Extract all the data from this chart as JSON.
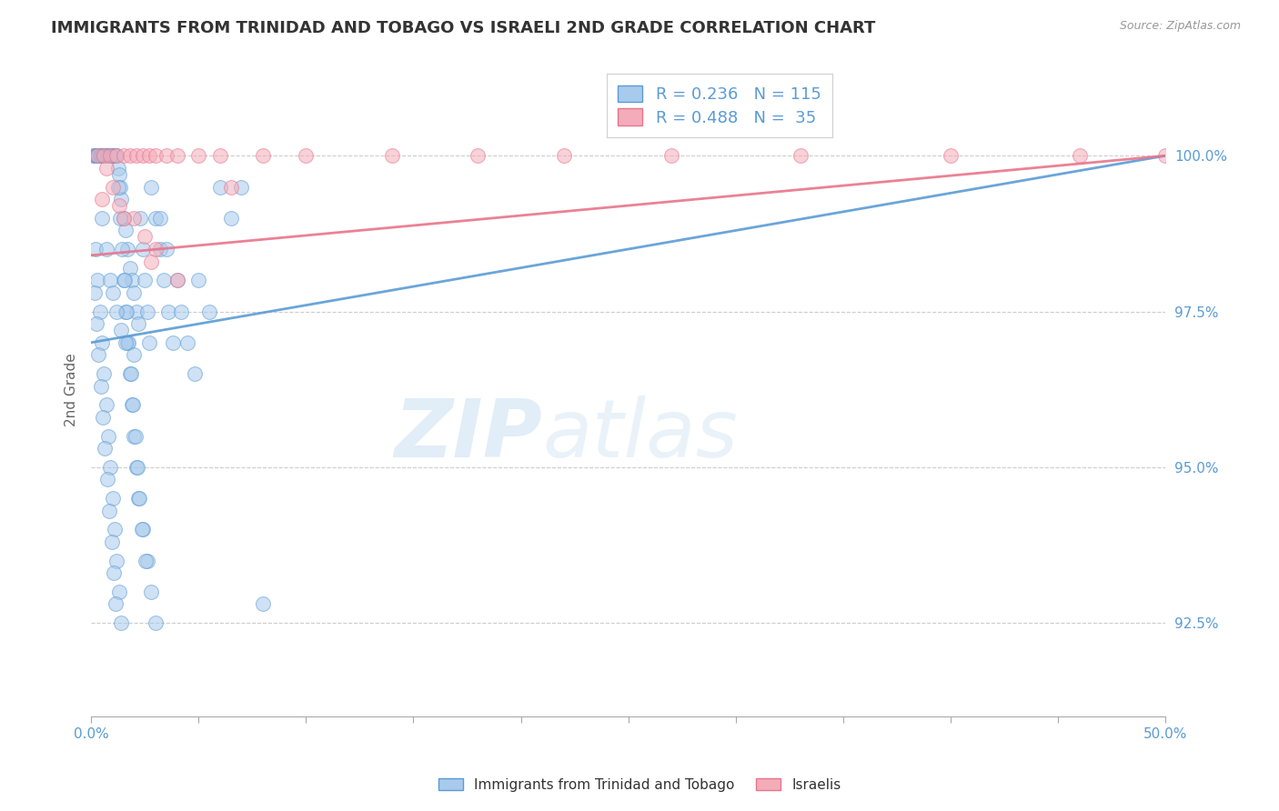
{
  "title": "IMMIGRANTS FROM TRINIDAD AND TOBAGO VS ISRAELI 2ND GRADE CORRELATION CHART",
  "source_text": "Source: ZipAtlas.com",
  "ylabel": "2nd Grade",
  "xlim": [
    0.0,
    50.0
  ],
  "ylim": [
    91.0,
    101.5
  ],
  "yticks": [
    92.5,
    95.0,
    97.5,
    100.0
  ],
  "ytick_labels": [
    "92.5%",
    "95.0%",
    "97.5%",
    "100.0%"
  ],
  "xticks": [
    0.0,
    5.0,
    10.0,
    15.0,
    20.0,
    25.0,
    30.0,
    35.0,
    40.0,
    45.0,
    50.0
  ],
  "xtick_labels": [
    "0.0%",
    "",
    "",
    "",
    "",
    "",
    "",
    "",
    "",
    "",
    "50.0%"
  ],
  "blue_color": "#A8CAEC",
  "pink_color": "#F4ACBA",
  "blue_line_color": "#5B9BD5",
  "pink_line_color": "#E8748A",
  "R_blue": 0.236,
  "N_blue": 115,
  "R_pink": 0.488,
  "N_pink": 35,
  "legend_label_blue": "Immigrants from Trinidad and Tobago",
  "legend_label_pink": "Israelis",
  "watermark_zip": "ZIP",
  "watermark_atlas": "atlas",
  "background_color": "#FFFFFF",
  "blue_scatter_x": [
    0.1,
    0.15,
    0.2,
    0.25,
    0.3,
    0.35,
    0.4,
    0.45,
    0.5,
    0.55,
    0.6,
    0.65,
    0.7,
    0.75,
    0.8,
    0.85,
    0.9,
    0.95,
    1.0,
    1.05,
    1.1,
    1.15,
    1.2,
    1.25,
    1.3,
    1.35,
    1.4,
    1.5,
    1.6,
    1.7,
    1.8,
    1.9,
    2.0,
    2.1,
    2.2,
    2.3,
    2.4,
    2.5,
    2.6,
    2.7,
    2.8,
    3.0,
    3.2,
    3.4,
    3.6,
    3.8,
    4.0,
    4.2,
    4.5,
    4.8,
    5.0,
    5.5,
    6.0,
    6.5,
    7.0,
    0.2,
    0.3,
    0.4,
    0.5,
    0.6,
    0.7,
    0.8,
    0.9,
    1.0,
    1.1,
    1.2,
    1.3,
    1.4,
    1.5,
    1.6,
    1.7,
    1.8,
    1.9,
    2.0,
    2.1,
    2.2,
    2.4,
    2.6,
    2.8,
    3.0,
    3.2,
    3.5,
    0.15,
    0.25,
    0.35,
    0.45,
    0.55,
    0.65,
    0.75,
    0.85,
    0.95,
    1.05,
    1.15,
    1.25,
    1.35,
    1.45,
    1.55,
    1.65,
    1.75,
    1.85,
    1.95,
    2.05,
    2.15,
    2.25,
    2.35,
    2.55,
    0.5,
    0.7,
    0.9,
    1.0,
    1.2,
    1.4,
    1.6,
    2.0,
    8.0
  ],
  "blue_scatter_y": [
    100.0,
    100.0,
    100.0,
    100.0,
    100.0,
    100.0,
    100.0,
    100.0,
    100.0,
    100.0,
    100.0,
    100.0,
    100.0,
    100.0,
    100.0,
    100.0,
    100.0,
    100.0,
    100.0,
    100.0,
    100.0,
    100.0,
    100.0,
    99.8,
    99.7,
    99.5,
    99.3,
    99.0,
    98.8,
    98.5,
    98.2,
    98.0,
    97.8,
    97.5,
    97.3,
    99.0,
    98.5,
    98.0,
    97.5,
    97.0,
    99.5,
    99.0,
    98.5,
    98.0,
    97.5,
    97.0,
    98.0,
    97.5,
    97.0,
    96.5,
    98.0,
    97.5,
    99.5,
    99.0,
    99.5,
    98.5,
    98.0,
    97.5,
    97.0,
    96.5,
    96.0,
    95.5,
    95.0,
    94.5,
    94.0,
    93.5,
    93.0,
    92.5,
    98.0,
    97.5,
    97.0,
    96.5,
    96.0,
    95.5,
    95.0,
    94.5,
    94.0,
    93.5,
    93.0,
    92.5,
    99.0,
    98.5,
    97.8,
    97.3,
    96.8,
    96.3,
    95.8,
    95.3,
    94.8,
    94.3,
    93.8,
    93.3,
    92.8,
    99.5,
    99.0,
    98.5,
    98.0,
    97.5,
    97.0,
    96.5,
    96.0,
    95.5,
    95.0,
    94.5,
    94.0,
    93.5,
    99.0,
    98.5,
    98.0,
    97.8,
    97.5,
    97.2,
    97.0,
    96.8,
    92.8
  ],
  "pink_scatter_x": [
    0.3,
    0.6,
    0.9,
    1.2,
    1.5,
    1.8,
    2.1,
    2.4,
    2.7,
    3.0,
    3.5,
    4.0,
    5.0,
    6.0,
    8.0,
    10.0,
    14.0,
    18.0,
    22.0,
    27.0,
    33.0,
    40.0,
    46.0,
    50.0,
    1.0,
    2.0,
    3.0,
    4.0,
    0.5,
    1.5,
    2.5,
    0.7,
    1.3,
    2.8,
    6.5
  ],
  "pink_scatter_y": [
    100.0,
    100.0,
    100.0,
    100.0,
    100.0,
    100.0,
    100.0,
    100.0,
    100.0,
    100.0,
    100.0,
    100.0,
    100.0,
    100.0,
    100.0,
    100.0,
    100.0,
    100.0,
    100.0,
    100.0,
    100.0,
    100.0,
    100.0,
    100.0,
    99.5,
    99.0,
    98.5,
    98.0,
    99.3,
    99.0,
    98.7,
    99.8,
    99.2,
    98.3,
    99.5
  ],
  "blue_trendline_x": [
    0.0,
    50.0
  ],
  "blue_trendline_y": [
    97.0,
    100.0
  ],
  "pink_trendline_x": [
    0.0,
    50.0
  ],
  "pink_trendline_y": [
    98.4,
    100.0
  ]
}
